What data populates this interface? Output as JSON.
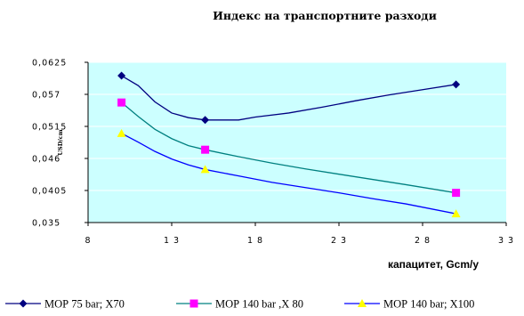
{
  "chart_data": {
    "type": "line",
    "title": "Индекс на транспортните разходи",
    "xlabel": "капацитет, Gcm/y",
    "ylabel": "USD/cm",
    "xlim": [
      8,
      33
    ],
    "ylim": [
      0.035,
      0.0625
    ],
    "x_ticks": [
      "8",
      "1 3",
      "1 8",
      "2 3",
      "2 8",
      "3 3"
    ],
    "x_tick_values": [
      8,
      13,
      18,
      23,
      28,
      33
    ],
    "y_ticks": [
      "0,035",
      "0,0405",
      "0,046",
      "0,0515",
      "0,057",
      "0,0625"
    ],
    "y_tick_values": [
      0.035,
      0.0405,
      0.046,
      0.0515,
      0.057,
      0.0625
    ],
    "plot_background": "#ccffff",
    "legend_position": "bottom",
    "series": [
      {
        "name": "МОР 75 bar; X70",
        "color": "#000080",
        "marker": "diamond",
        "marker_x": [
          10,
          15,
          30
        ],
        "x": [
          10,
          11,
          12,
          13,
          14,
          15,
          16,
          17,
          18,
          20,
          22,
          24,
          26,
          28,
          30
        ],
        "values": [
          0.0602,
          0.0585,
          0.0557,
          0.0538,
          0.053,
          0.0526,
          0.0526,
          0.0526,
          0.0531,
          0.0538,
          0.0548,
          0.0559,
          0.0569,
          0.0578,
          0.0587
        ]
      },
      {
        "name": "МОР 140 bar ,X 80",
        "color": "#ff00ff",
        "line_color": "#008080",
        "marker": "square",
        "marker_x": [
          10,
          15,
          30
        ],
        "x": [
          10,
          11,
          12,
          13,
          14,
          15,
          17,
          19,
          21,
          23,
          25,
          27,
          30
        ],
        "values": [
          0.0556,
          0.0532,
          0.051,
          0.0494,
          0.0482,
          0.0475,
          0.0463,
          0.0452,
          0.0442,
          0.0433,
          0.0424,
          0.0415,
          0.0401
        ]
      },
      {
        "name": "МОР 140 bar; X100",
        "color": "#ffff00",
        "line_color": "#0000ff",
        "marker": "triangle",
        "marker_x": [
          10,
          15,
          30
        ],
        "x": [
          10,
          11,
          12,
          13,
          14,
          15,
          17,
          19,
          21,
          23,
          25,
          27,
          30
        ],
        "values": [
          0.0503,
          0.0488,
          0.0472,
          0.0459,
          0.0449,
          0.0441,
          0.043,
          0.0419,
          0.041,
          0.0401,
          0.0391,
          0.0382,
          0.0365
        ]
      }
    ]
  }
}
